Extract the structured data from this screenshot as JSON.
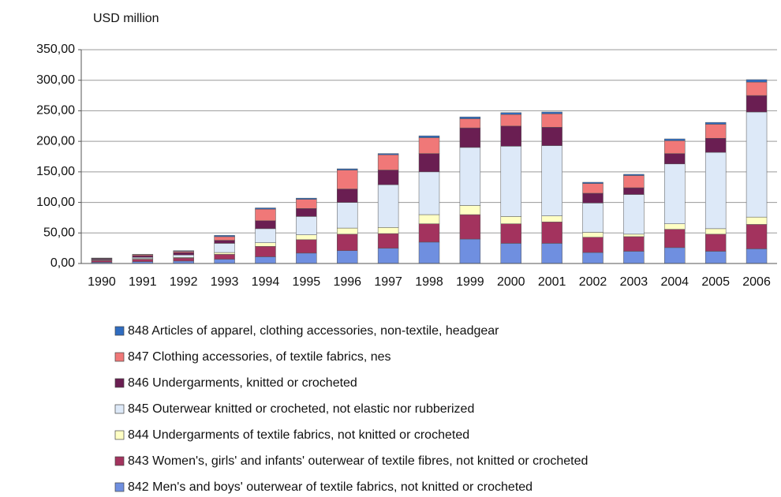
{
  "chart_data": {
    "type": "stacked_bar",
    "y_axis_label": "USD million",
    "categories": [
      "1990",
      "1991",
      "1992",
      "1993",
      "1994",
      "1995",
      "1996",
      "1997",
      "1998",
      "1999",
      "2000",
      "2001",
      "2002",
      "2003",
      "2004",
      "2005",
      "2006"
    ],
    "series": [
      {
        "name": "848 Articles of apparel, clothing accessories, non-textile, headgear",
        "color": "#2f6cc0",
        "values": [
          0.5,
          0.5,
          1,
          2,
          2,
          2,
          2,
          2,
          3,
          3,
          3,
          3,
          2,
          2,
          3,
          3,
          4
        ]
      },
      {
        "name": "847 Clothing accessories, of textile fabrics, nes",
        "color": "#f07878",
        "values": [
          0.5,
          1.5,
          2,
          6,
          19,
          15,
          31,
          25,
          26,
          15,
          19,
          22,
          16,
          20,
          21,
          23,
          22
        ]
      },
      {
        "name": "846 Undergarments, knitted or crocheted",
        "color": "#6a1e52",
        "values": [
          1.5,
          3,
          4,
          5,
          13,
          13,
          22,
          24,
          30,
          32,
          33,
          30,
          16,
          11,
          17,
          23,
          27
        ]
      },
      {
        "name": "845 Outerwear knitted or crocheted, not elastic nor rubberized",
        "color": "#dde9f8",
        "values": [
          1,
          2,
          4,
          15,
          23,
          30,
          42,
          70,
          70,
          95,
          115,
          115,
          48,
          65,
          98,
          125,
          172
        ]
      },
      {
        "name": "844 Undergarments of textile fabrics, not knitted or crocheted",
        "color": "#ffffc4",
        "values": [
          0.5,
          1,
          1,
          3,
          6,
          8,
          10,
          10,
          15,
          15,
          12,
          10,
          8,
          4,
          9,
          9,
          12
        ]
      },
      {
        "name": "843 Women's, girls' and infants' outerwear of textile fibres, not knitted or crocheted",
        "color": "#a3335e",
        "values": [
          3,
          4,
          5,
          8,
          17,
          22,
          27,
          24,
          30,
          40,
          32,
          35,
          25,
          24,
          30,
          28,
          40
        ]
      },
      {
        "name": "842 Men's and boys' outerwear of textile fabrics, not knitted or crocheted",
        "color": "#6f8fe0",
        "values": [
          2,
          3,
          4,
          7,
          11,
          17,
          21,
          25,
          35,
          40,
          33,
          33,
          18,
          20,
          26,
          20,
          24
        ]
      }
    ],
    "ylim": [
      0,
      350
    ],
    "yticks": [
      {
        "value": 0,
        "label": "0,00"
      },
      {
        "value": 50,
        "label": "50,00"
      },
      {
        "value": 100,
        "label": "100,00"
      },
      {
        "value": 150,
        "label": "150,00"
      },
      {
        "value": 200,
        "label": "200,00"
      },
      {
        "value": 250,
        "label": "250,00"
      },
      {
        "value": 300,
        "label": "300,00"
      },
      {
        "value": 350,
        "label": "350,00"
      }
    ],
    "grid": true
  }
}
